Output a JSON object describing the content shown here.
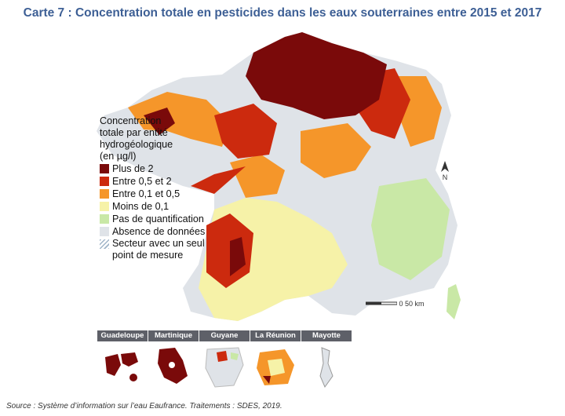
{
  "title": "Carte 7 : Concentration totale en pesticides dans les eaux souterraines entre 2015 et 2017",
  "legend": {
    "title_lines": [
      "Concentration",
      "totale par entité",
      "hydrogéologique",
      "(en µg/l)"
    ],
    "items": [
      {
        "label": "Plus de 2",
        "color": "#7a0a0a"
      },
      {
        "label": "Entre 0,5 et 2",
        "color": "#cc2a0e"
      },
      {
        "label": "Entre 0,1 et 0,5",
        "color": "#f5962a"
      },
      {
        "label": "Moins de 0,1",
        "color": "#f6f2a8"
      },
      {
        "label": "Pas de quantification",
        "color": "#c9e8a6"
      },
      {
        "label": "Absence de données",
        "color": "#dfe3e8"
      }
    ],
    "hatch_item": {
      "line1": "Secteur avec un seul",
      "line2": "point de mesure"
    }
  },
  "insets": [
    "Guadeloupe",
    "Martinique",
    "Guyane",
    "La Réunion",
    "Mayotte"
  ],
  "scale": {
    "zero": "0",
    "label": "50 km"
  },
  "north": "N",
  "source": "Source : Système d’information sur l’eau Eaufrance. Traitements : SDES, 2019."
}
